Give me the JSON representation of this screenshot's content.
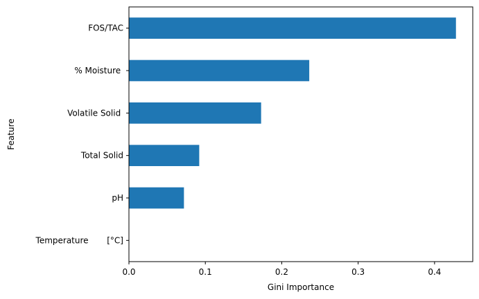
{
  "chart_data": {
    "type": "bar",
    "orientation": "horizontal",
    "categories": [
      "FOS/TAC",
      "% Moisture ",
      "Volatile Solid ",
      "Total Solid",
      "pH",
      "Temperature       [°C]"
    ],
    "values": [
      0.428,
      0.236,
      0.173,
      0.092,
      0.072,
      0.0
    ],
    "xlabel": "Gini Importance",
    "ylabel": "Feature",
    "xlim": [
      0,
      0.45
    ],
    "xticks": [
      0.0,
      0.1,
      0.2,
      0.3,
      0.4
    ],
    "xtick_labels": [
      "0.0",
      "0.1",
      "0.2",
      "0.3",
      "0.4"
    ],
    "grid": false,
    "bar_color": "#1f77b4"
  }
}
